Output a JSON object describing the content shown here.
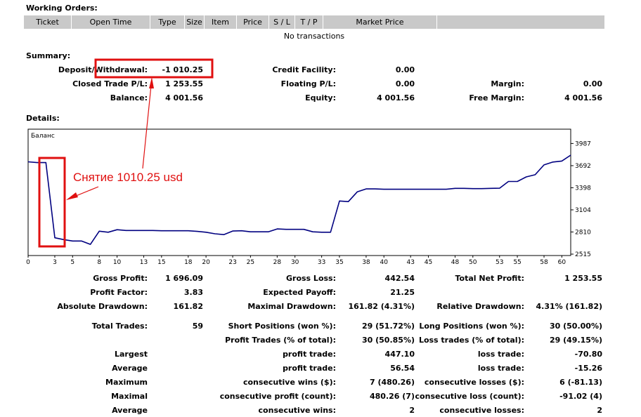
{
  "working_orders": {
    "title": "Working Orders:",
    "columns": [
      "Ticket",
      "Open Time",
      "Type",
      "Size",
      "Item",
      "Price",
      "S / L",
      "T / P",
      "Market Price",
      ""
    ],
    "empty_text": "No transactions"
  },
  "summary": {
    "title": "Summary:",
    "rows": [
      [
        {
          "label": "Deposit/Withdrawal:",
          "value": "-1 010.25"
        },
        {
          "label": "Credit Facility:",
          "value": "0.00"
        },
        {
          "label": "",
          "value": ""
        }
      ],
      [
        {
          "label": "Closed Trade P/L:",
          "value": "1 253.55"
        },
        {
          "label": "Floating P/L:",
          "value": "0.00"
        },
        {
          "label": "Margin:",
          "value": "0.00"
        }
      ],
      [
        {
          "label": "Balance:",
          "value": "4 001.56"
        },
        {
          "label": "Equity:",
          "value": "4 001.56"
        },
        {
          "label": "Free Margin:",
          "value": "4 001.56"
        }
      ]
    ]
  },
  "details": {
    "title": "Details:"
  },
  "chart_data": {
    "type": "line",
    "title": "Баланс",
    "ylim": [
      2515,
      4000
    ],
    "yticks": [
      2515,
      2810,
      3104,
      3398,
      3692,
      3987
    ],
    "xlim": [
      0,
      61
    ],
    "xticks": [
      0,
      3,
      5,
      8,
      10,
      13,
      15,
      18,
      20,
      23,
      25,
      28,
      30,
      33,
      35,
      38,
      40,
      43,
      45,
      48,
      50,
      53,
      55,
      58,
      60
    ],
    "line_color": "#000080",
    "series": [
      {
        "x": [
          0,
          1,
          2,
          3,
          4,
          5,
          6,
          7,
          8,
          9,
          10,
          11,
          12,
          13,
          14,
          15,
          16,
          17,
          18,
          19,
          20,
          21,
          22,
          23,
          24,
          25,
          26,
          27,
          28,
          29,
          30,
          31,
          32,
          33,
          34,
          35,
          36,
          37,
          38,
          39,
          40,
          41,
          42,
          43,
          44,
          45,
          46,
          47,
          48,
          49,
          50,
          51,
          52,
          53,
          54,
          55,
          56,
          57,
          58,
          59,
          60,
          61
        ],
        "values": [
          3743,
          3733,
          3733,
          2733,
          2708,
          2690,
          2690,
          2645,
          2820,
          2806,
          2840,
          2830,
          2830,
          2830,
          2830,
          2826,
          2826,
          2826,
          2826,
          2818,
          2806,
          2786,
          2775,
          2822,
          2826,
          2812,
          2812,
          2812,
          2850,
          2845,
          2845,
          2845,
          2812,
          2806,
          2806,
          3222,
          3214,
          3343,
          3383,
          3383,
          3378,
          3378,
          3378,
          3378,
          3378,
          3378,
          3378,
          3378,
          3390,
          3390,
          3386,
          3386,
          3390,
          3392,
          3482,
          3482,
          3542,
          3571,
          3702,
          3740,
          3753,
          3832
        ]
      }
    ]
  },
  "annotation": {
    "text": "Снятие 1010.25 usd",
    "color": "#e01010"
  },
  "stats": {
    "gross_profit_label": "Gross Profit:",
    "gross_profit_value": "1 696.09",
    "gross_loss_label": "Gross Loss:",
    "gross_loss_value": "442.54",
    "total_net_profit_label": "Total Net Profit:",
    "total_net_profit_value": "1 253.55",
    "profit_factor_label": "Profit Factor:",
    "profit_factor_value": "3.83",
    "expected_payoff_label": "Expected Payoff:",
    "expected_payoff_value": "21.25",
    "absolute_drawdown_label": "Absolute Drawdown:",
    "absolute_drawdown_value": "161.82",
    "maximal_drawdown_label": "Maximal Drawdown:",
    "maximal_drawdown_value": "161.82 (4.31%)",
    "relative_drawdown_label": "Relative Drawdown:",
    "relative_drawdown_value": "4.31% (161.82)",
    "total_trades_label": "Total Trades:",
    "total_trades_value": "59",
    "short_positions_label": "Short Positions (won %):",
    "short_positions_value": "29 (51.72%)",
    "long_positions_label": "Long Positions (won %):",
    "long_positions_value": "30 (50.00%)",
    "profit_trades_label": "Profit Trades (% of total):",
    "profit_trades_value": "30 (50.85%)",
    "loss_trades_label": "Loss trades (% of total):",
    "loss_trades_value": "29 (49.15%)",
    "largest_label": "Largest",
    "largest_profit_label": "profit trade:",
    "largest_profit_value": "447.10",
    "largest_loss_label": "loss trade:",
    "largest_loss_value": "-70.80",
    "average_label": "Average",
    "average_profit_label": "profit trade:",
    "average_profit_value": "56.54",
    "average_loss_label": "loss trade:",
    "average_loss_value": "-15.26",
    "maximum_label": "Maximum",
    "max_consec_wins_label": "consecutive wins ($):",
    "max_consec_wins_value": "7 (480.26)",
    "max_consec_losses_label": "consecutive losses ($):",
    "max_consec_losses_value": "6 (-81.13)",
    "maximal_label": "Maximal",
    "maximal_consec_profit_label": "consecutive profit (count):",
    "maximal_consec_profit_value": "480.26 (7)",
    "maximal_consec_loss_label": "consecutive loss (count):",
    "maximal_consec_loss_value": "-91.02 (4)",
    "average2_label": "Average",
    "avg_consec_wins_label": "consecutive wins:",
    "avg_consec_wins_value": "2",
    "avg_consec_losses_label": "consecutive losses:",
    "avg_consec_losses_value": "2"
  }
}
